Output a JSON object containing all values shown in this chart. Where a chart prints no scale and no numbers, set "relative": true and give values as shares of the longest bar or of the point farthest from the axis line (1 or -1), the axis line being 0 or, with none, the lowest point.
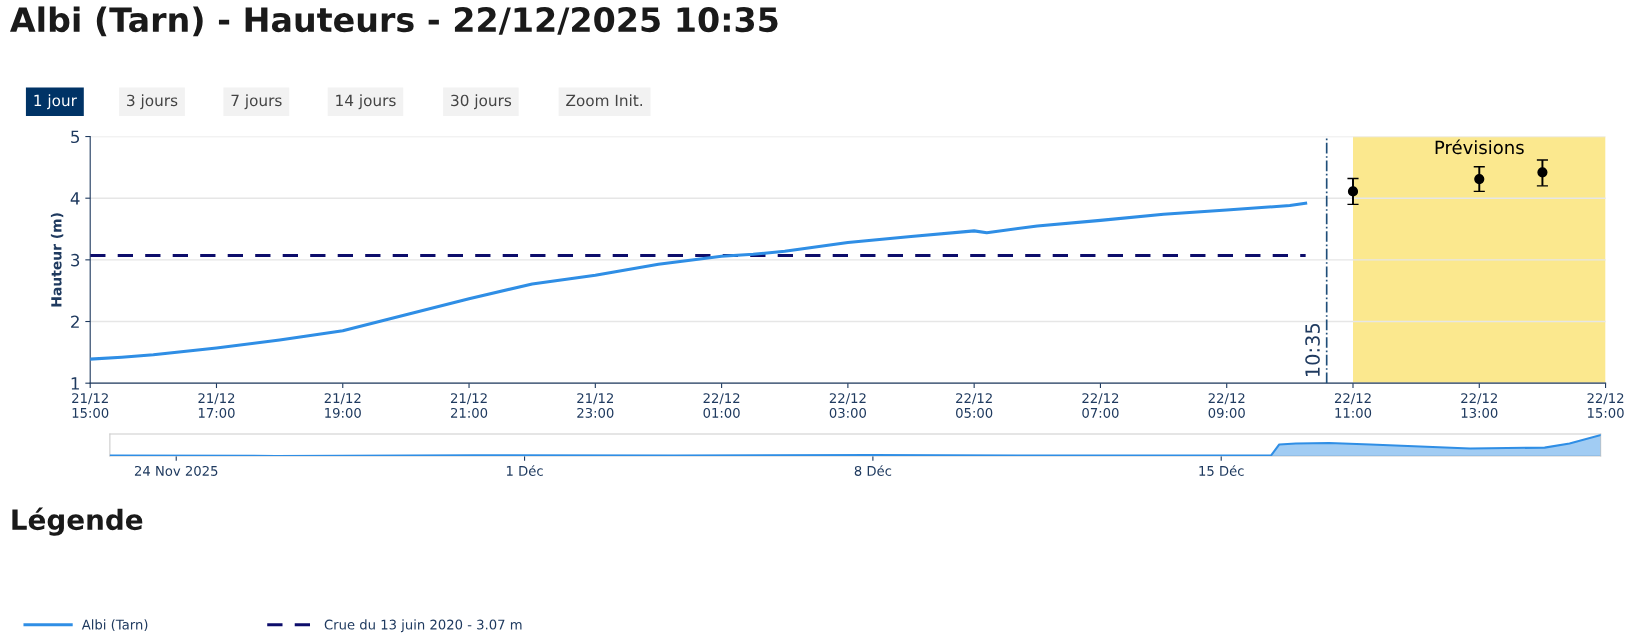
{
  "chart_data": [
    {
      "type": "line",
      "title": "Albi (Tarn) - Hauteurs - 22/12/2025 10:35",
      "ylabel": "Hauteur (m)",
      "annotations": [
        "1 jour",
        "3 jours",
        "7 jours",
        "14 jours",
        "30 jours",
        "Zoom Init.",
        "Légende"
      ],
      "xlim": [
        "2025-12-21T15:00",
        "2025-12-22T15:00"
      ],
      "ylim": [
        1,
        5
      ],
      "xticks": [
        {
          "value": "2025-12-21T15:00",
          "label": "21/12\n15:00"
        },
        {
          "value": "2025-12-21T17:00",
          "label": "21/12\n17:00"
        },
        {
          "value": "2025-12-21T19:00",
          "label": "21/12\n19:00"
        },
        {
          "value": "2025-12-21T21:00",
          "label": "21/12\n21:00"
        },
        {
          "value": "2025-12-21T23:00",
          "label": "21/12\n23:00"
        },
        {
          "value": "2025-12-22T01:00",
          "label": "22/12\n01:00"
        },
        {
          "value": "2025-12-22T03:00",
          "label": "22/12\n03:00"
        },
        {
          "value": "2025-12-22T05:00",
          "label": "22/12\n05:00"
        },
        {
          "value": "2025-12-22T07:00",
          "label": "22/12\n07:00"
        },
        {
          "value": "2025-12-22T09:00",
          "label": "22/12\n09:00"
        },
        {
          "value": "2025-12-22T11:00",
          "label": "22/12\n11:00"
        },
        {
          "value": "2025-12-22T13:00",
          "label": "22/12\n13:00"
        },
        {
          "value": "2025-12-22T15:00",
          "label": "22/12\n15:00"
        }
      ],
      "yticks": [
        1,
        2,
        3,
        4,
        5
      ],
      "grid": "y",
      "legend": "bottom left",
      "line_style": "solid",
      "marker": "none",
      "series": [
        {
          "name": "Albi (Tarn)",
          "type": "line",
          "color": "#2f8ee5",
          "x": [
            "2025-12-21T15:00",
            "2025-12-21T15:30",
            "2025-12-21T16:00",
            "2025-12-21T17:00",
            "2025-12-21T18:00",
            "2025-12-21T19:00",
            "2025-12-21T20:00",
            "2025-12-21T21:00",
            "2025-12-21T22:00",
            "2025-12-21T23:00",
            "2025-12-22T00:00",
            "2025-12-22T01:00",
            "2025-12-22T01:30",
            "2025-12-22T02:00",
            "2025-12-22T03:00",
            "2025-12-22T04:00",
            "2025-12-22T05:00",
            "2025-12-22T05:12",
            "2025-12-22T06:00",
            "2025-12-22T07:00",
            "2025-12-22T08:00",
            "2025-12-22T09:00",
            "2025-12-22T10:00",
            "2025-12-22T10:15"
          ],
          "values": [
            1.39,
            1.42,
            1.46,
            1.57,
            1.7,
            1.85,
            2.11,
            2.37,
            2.61,
            2.75,
            2.93,
            3.06,
            3.09,
            3.14,
            3.28,
            3.38,
            3.47,
            3.44,
            3.55,
            3.64,
            3.74,
            3.81,
            3.88,
            3.92
          ]
        },
        {
          "type": "scatter",
          "marker": "circle",
          "color": "#000000",
          "x": [
            "2025-12-22T11:00",
            "2025-12-22T13:00",
            "2025-12-22T14:00"
          ],
          "values": [
            4.11,
            4.31,
            4.42
          ],
          "errors": [
            [
              3.9,
              4.32
            ],
            [
              4.11,
              4.51
            ],
            [
              4.2,
              4.62
            ]
          ]
        }
      ],
      "ref_lines": [
        {
          "axis": "y",
          "value": 3.07,
          "label": "Crue du 13 juin 2020 - 3.07 m",
          "color": "#0d0d6b",
          "line_style": "dashed"
        },
        {
          "axis": "x",
          "value": "2025-12-22T10:35",
          "label": "10:35",
          "color": "#1f4e79",
          "line_style": "dashdot"
        }
      ],
      "bands": [
        {
          "axis": "x",
          "from": "2025-12-22T11:00",
          "to": "2025-12-22T15:00",
          "label": "Prévisions",
          "color": "#fbe88e"
        }
      ]
    },
    {
      "type": "area",
      "relative": true,
      "tick_labels": "x",
      "x": [
        "2025-11-22T16:00",
        "2025-11-26",
        "2025-11-30",
        "2025-12-04",
        "2025-12-08",
        "2025-12-12",
        "2025-12-16T00:00",
        "2025-12-16T04:00",
        "2025-12-16T12:00",
        "2025-12-17T04:00",
        "2025-12-18",
        "2025-12-19",
        "2025-12-20",
        "2025-12-21T12:00",
        "2025-12-22T00:00",
        "2025-12-22T15:00"
      ],
      "values": [
        0.02,
        0.0,
        0.03,
        0.02,
        0.04,
        0.02,
        0.02,
        0.55,
        0.6,
        0.62,
        0.55,
        0.45,
        0.36,
        0.4,
        0.6,
        1
      ],
      "color": "#2f8ee5",
      "xlim": [
        "2025-11-22T16:00",
        "2025-12-22T15:00"
      ],
      "xticks": [
        {
          "value": "2025-11-24",
          "label": "24 Nov 2025"
        },
        {
          "value": "2025-12-01",
          "label": "1 Déc"
        },
        {
          "value": "2025-12-08",
          "label": "8 Déc"
        },
        {
          "value": "2025-12-15",
          "label": "15 Déc"
        }
      ]
    }
  ]
}
